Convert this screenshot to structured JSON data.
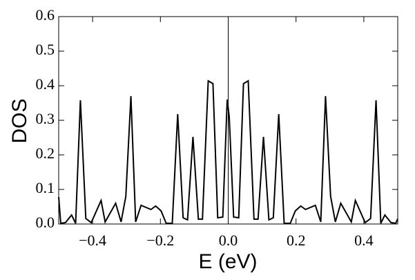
{
  "chart_data": {
    "type": "line",
    "x_label": "E (eV)",
    "y_label": "DOS",
    "xlim": [
      -0.5,
      0.5
    ],
    "ylim": [
      0,
      0.6
    ],
    "xticks": [
      {
        "value": -0.4,
        "label": "−0.4"
      },
      {
        "value": -0.2,
        "label": "−0.2"
      },
      {
        "value": 0,
        "label": "0.0"
      },
      0.2,
      0.4
    ],
    "yticks": [
      {
        "value": 0,
        "label": "0.0"
      },
      0.1,
      0.2,
      0.3,
      0.4,
      0.5,
      0.6
    ],
    "series": [
      {
        "color": "#000000",
        "x": [
          -0.5,
          -0.494,
          -0.48,
          -0.462,
          -0.45,
          -0.436,
          -0.42,
          -0.404,
          -0.375,
          -0.363,
          -0.332,
          -0.316,
          -0.302,
          -0.287,
          -0.273,
          -0.257,
          -0.228,
          -0.214,
          -0.198,
          -0.183,
          -0.165,
          -0.149,
          -0.133,
          -0.12,
          -0.104,
          -0.088,
          -0.076,
          -0.059,
          -0.045,
          -0.031,
          -0.016,
          -0.003,
          0.003,
          0.016,
          0.031,
          0.045,
          0.059,
          0.076,
          0.088,
          0.104,
          0.12,
          0.133,
          0.149,
          0.165,
          0.183,
          0.198,
          0.214,
          0.228,
          0.257,
          0.273,
          0.287,
          0.302,
          0.316,
          0.332,
          0.363,
          0.375,
          0.404,
          0.42,
          0.436,
          0.45,
          0.462,
          0.48,
          0.494,
          0.5
        ],
        "values": [
          0.078,
          0.002,
          0.004,
          0.026,
          0.002,
          0.358,
          0.016,
          0.004,
          0.068,
          0.006,
          0.06,
          0.006,
          0.08,
          0.37,
          0.006,
          0.054,
          0.042,
          0.052,
          0.038,
          0.002,
          0.002,
          0.318,
          0.018,
          0.012,
          0.252,
          0.014,
          0.014,
          0.414,
          0.406,
          0.018,
          0.02,
          0.36,
          0.31,
          0.02,
          0.018,
          0.406,
          0.414,
          0.014,
          0.014,
          0.252,
          0.012,
          0.018,
          0.318,
          0.002,
          0.002,
          0.038,
          0.052,
          0.042,
          0.054,
          0.006,
          0.37,
          0.08,
          0.006,
          0.06,
          0.006,
          0.068,
          0.004,
          0.016,
          0.358,
          0.002,
          0.026,
          0.004,
          0.002,
          0.015
        ]
      }
    ]
  }
}
